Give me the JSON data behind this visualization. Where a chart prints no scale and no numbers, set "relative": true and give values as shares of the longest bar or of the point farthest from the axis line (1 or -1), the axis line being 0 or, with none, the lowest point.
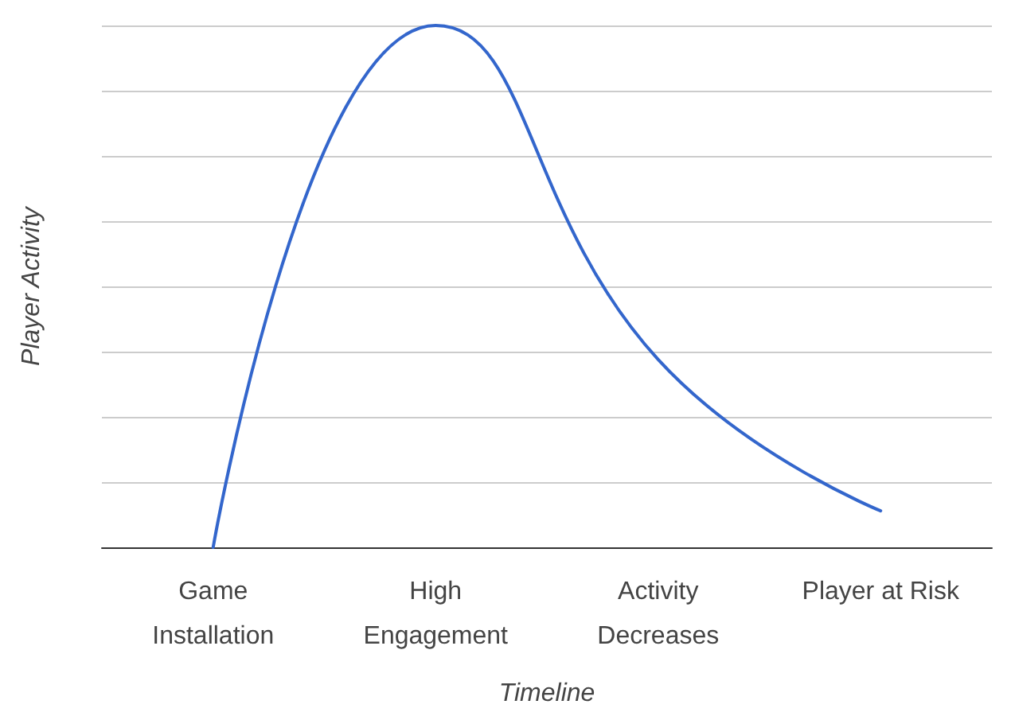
{
  "chart_data": {
    "type": "line",
    "xlabel": "Timeline",
    "ylabel": "Player Activity",
    "relative": true,
    "categories": [
      "Game Installation",
      "High Engagement",
      "Activity Decreases",
      "Player at Risk"
    ],
    "series": [
      {
        "color": "#3366cc",
        "values": [
          0,
          1,
          0.36,
          0.07
        ]
      }
    ],
    "grid": "y",
    "marker": "none",
    "line_style": "solid"
  }
}
